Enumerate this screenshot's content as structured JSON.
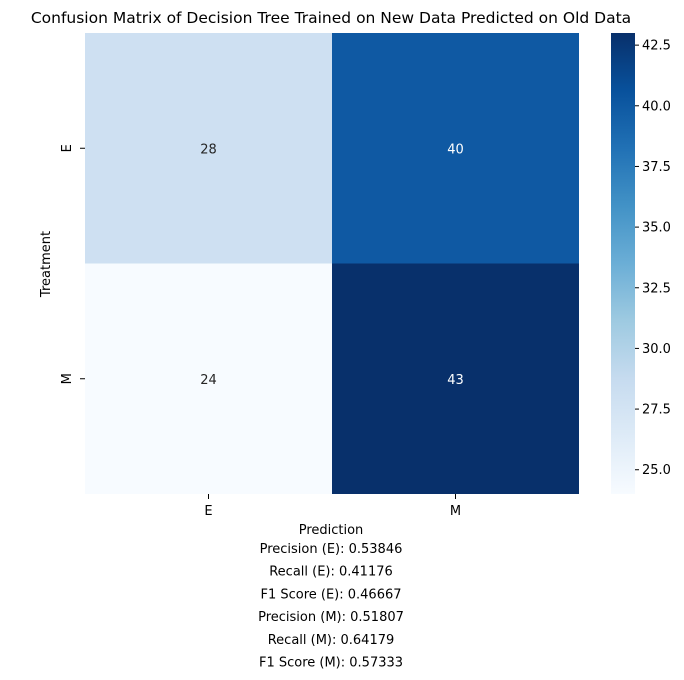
{
  "chart_data": {
    "type": "heatmap",
    "title": "Confusion Matrix of Decision Tree Trained on New Data Predicted on Old Data",
    "xlabel": "Prediction",
    "ylabel": "Treatment",
    "row_labels": [
      "E",
      "M"
    ],
    "col_labels": [
      "E",
      "M"
    ],
    "matrix": [
      [
        28,
        40
      ],
      [
        24,
        43
      ]
    ],
    "colormap": "Blues",
    "vmin": 24,
    "vmax": 43,
    "colorbar_ticks": [
      "25.0",
      "27.5",
      "30.0",
      "32.5",
      "35.0",
      "37.5",
      "40.0",
      "42.5"
    ],
    "metrics": [
      "Precision (E): 0.53846",
      "Recall (E): 0.41176",
      "F1 Score (E): 0.46667",
      "Precision (M): 0.51807",
      "Recall (M): 0.64179",
      "F1 Score (M): 0.57333"
    ]
  }
}
